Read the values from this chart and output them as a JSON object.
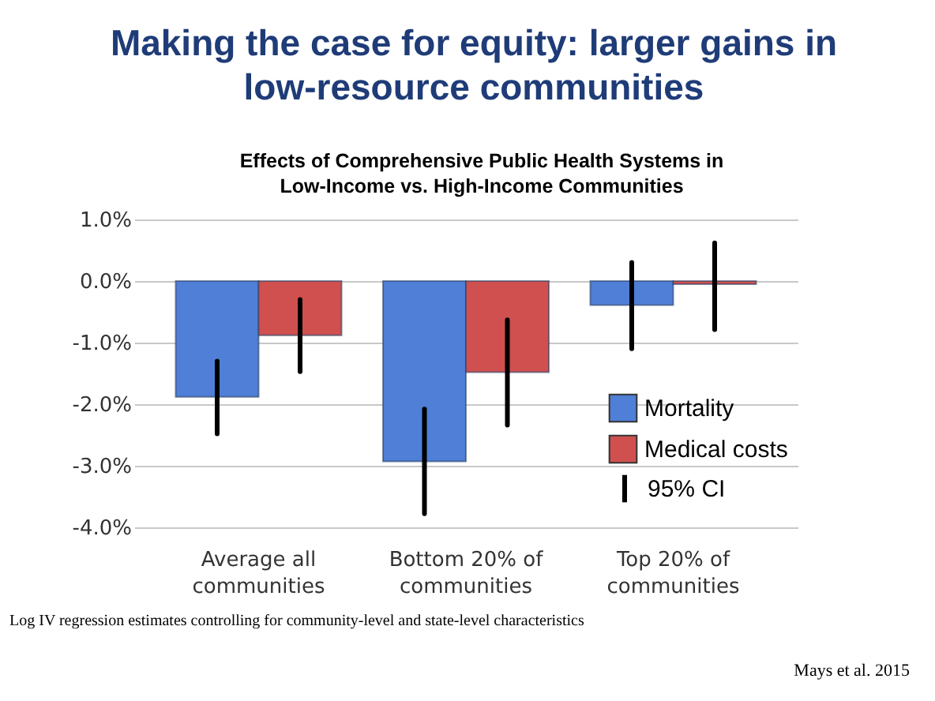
{
  "chart_data": {
    "type": "bar",
    "title": "Making the case for equity: larger gains in low-resource communities",
    "subtitle": "Effects of Comprehensive Public Health Systems in Low-Income vs.  High-Income Communities",
    "categories": [
      "Average all communities",
      "Bottom 20% of communities",
      "Top 20%  of communities"
    ],
    "series": [
      {
        "name": "Mortality",
        "color": "#4f7fd6",
        "values": [
          -1.88,
          -2.93,
          -0.39
        ],
        "errors": [
          [
            -2.48,
            -1.3
          ],
          [
            -3.78,
            -2.08
          ],
          [
            -1.1,
            0.3
          ]
        ]
      },
      {
        "name": "Medical costs",
        "color": "#d0504f",
        "values": [
          -0.88,
          -1.48,
          -0.05
        ],
        "errors": [
          [
            -1.47,
            -0.3
          ],
          [
            -2.34,
            -0.63
          ],
          [
            -0.79,
            0.62
          ]
        ]
      }
    ],
    "ylim": [
      -4,
      1
    ],
    "yticks": [
      {
        "value": -4,
        "label": "-4.0%"
      },
      {
        "value": -3,
        "label": "-3.0%"
      },
      {
        "value": -2,
        "label": "-2.0%"
      },
      {
        "value": -1,
        "label": "-1.0%"
      },
      {
        "value": 0,
        "label": "0.0%"
      },
      {
        "value": 1,
        "label": "1.0%"
      }
    ],
    "grid": "y",
    "legend": "right",
    "annotations": [
      "95% CI",
      "Log IV regression estimates controlling for community-level and state-level characteristics",
      "Mays et al. 2015"
    ]
  }
}
